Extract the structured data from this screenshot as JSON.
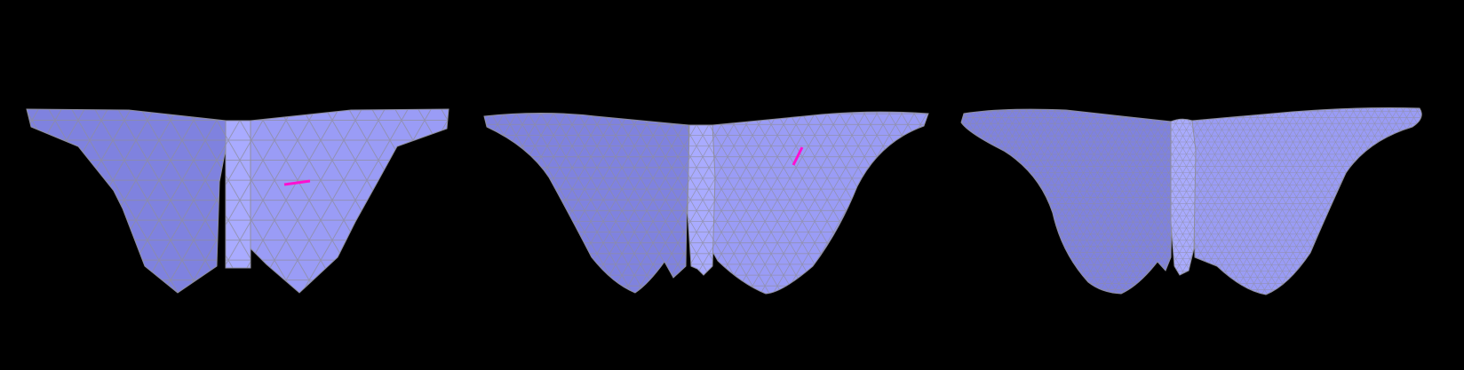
{
  "colors": {
    "background": "#000000",
    "surface": "#9a9cf6",
    "surface_shade": "#7f82df",
    "surface_light": "#a9abff",
    "wireframe": "#8e8e9e",
    "marker": "#ff10d0"
  },
  "figure": {
    "panels": [
      {
        "name": "coarse-mesh",
        "detail": "coarse",
        "has_marker": true
      },
      {
        "name": "medium-mesh",
        "detail": "medium",
        "has_marker": true
      },
      {
        "name": "fine-mesh",
        "detail": "fine",
        "has_marker": false
      }
    ]
  }
}
